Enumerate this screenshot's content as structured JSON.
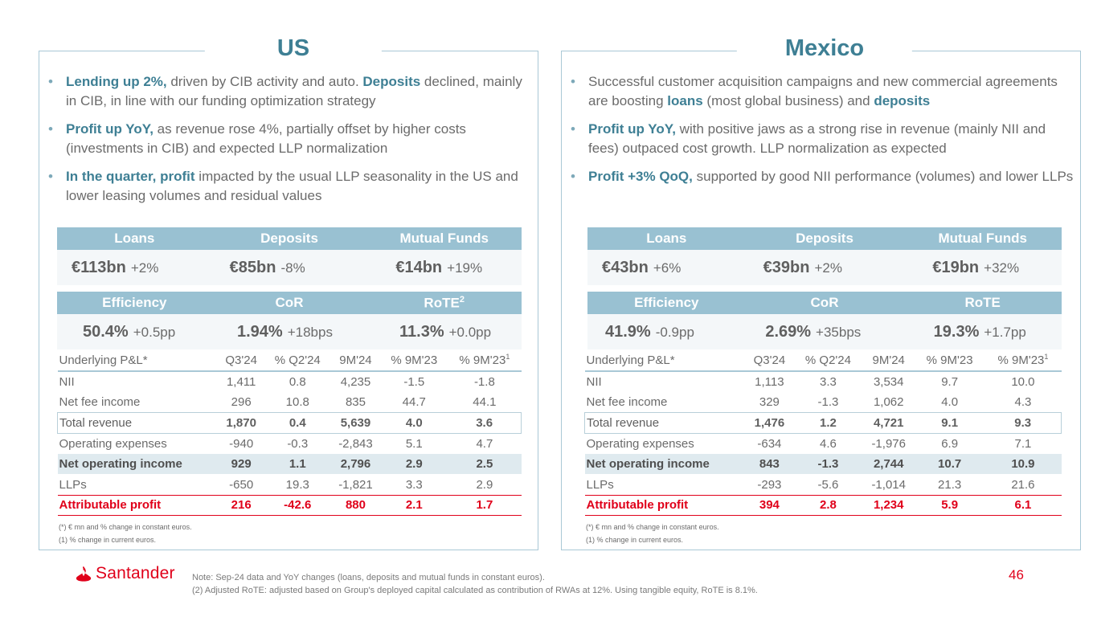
{
  "us": {
    "title": "US",
    "bullets": [
      {
        "hl": "Lending up 2%,",
        "t1": " driven by CIB activity and auto. ",
        "hl2": "Deposits",
        "t2": " declined, mainly in CIB, in line with our funding optimization strategy"
      },
      {
        "hl": "Profit up YoY,",
        "t1": " as revenue rose 4%, partially offset by higher costs (investments in CIB) and expected LLP normalization"
      },
      {
        "hl": "In the quarter, profit",
        "t1": " impacted by the usual LLP seasonality in the US and lower leasing volumes and residual values"
      }
    ],
    "kpi_row1": {
      "headers": [
        "Loans",
        "Deposits",
        "Mutual Funds"
      ],
      "values": [
        {
          "v": "€113bn",
          "c": "+2%"
        },
        {
          "v": "€85bn",
          "c": "-8%"
        },
        {
          "v": "€14bn",
          "c": "+19%"
        }
      ]
    },
    "kpi_row2": {
      "headers": [
        "Efficiency",
        "CoR",
        "RoTE"
      ],
      "rote_sup": "2",
      "values": [
        {
          "v": "50.4%",
          "c": "+0.5pp"
        },
        {
          "v": "1.94%",
          "c": "+18bps"
        },
        {
          "v": "11.3%",
          "c": "+0.0pp"
        }
      ]
    },
    "pl": {
      "headers": [
        "Underlying P&L*",
        "Q3'24",
        "% Q2'24",
        "9M'24",
        "% 9M'23",
        "% 9M'23"
      ],
      "last_header_sup": "1",
      "rows": [
        [
          "NII",
          "1,411",
          "0.8",
          "4,235",
          "-1.5",
          "-1.8"
        ],
        [
          "Net fee income",
          "296",
          "10.8",
          "835",
          "44.7",
          "44.1"
        ],
        [
          "Total revenue",
          "1,870",
          "0.4",
          "5,639",
          "4.0",
          "3.6"
        ],
        [
          "Operating expenses",
          "-940",
          "-0.3",
          "-2,843",
          "5.1",
          "4.7"
        ],
        [
          "Net operating income",
          "929",
          "1.1",
          "2,796",
          "2.9",
          "2.5"
        ],
        [
          "LLPs",
          "-650",
          "19.3",
          "-1,821",
          "3.3",
          "2.9"
        ],
        [
          "Attributable profit",
          "216",
          "-42.6",
          "880",
          "2.1",
          "1.7"
        ]
      ],
      "notes": [
        "(*) € mn and % change in constant euros.",
        "(1)  % change in current euros."
      ]
    }
  },
  "mx": {
    "title": "Mexico",
    "bullets": [
      {
        "t0": "Successful customer acquisition campaigns and new commercial agreements are boosting ",
        "hl": "loans",
        "t1": " (most global business) and ",
        "hl2": "deposits",
        "t2": ""
      },
      {
        "hl": "Profit up YoY,",
        "t1": " with positive jaws as a strong rise in revenue (mainly NII and fees) outpaced cost growth. LLP normalization as expected"
      },
      {
        "hl": "Profit +3% QoQ,",
        "t1": " supported by good NII performance (volumes) and lower LLPs"
      }
    ],
    "kpi_row1": {
      "headers": [
        "Loans",
        "Deposits",
        "Mutual Funds"
      ],
      "values": [
        {
          "v": "€43bn",
          "c": "+6%"
        },
        {
          "v": "€39bn",
          "c": "+2%"
        },
        {
          "v": "€19bn",
          "c": "+32%"
        }
      ]
    },
    "kpi_row2": {
      "headers": [
        "Efficiency",
        "CoR",
        "RoTE"
      ],
      "values": [
        {
          "v": "41.9%",
          "c": "-0.9pp"
        },
        {
          "v": "2.69%",
          "c": "+35bps"
        },
        {
          "v": "19.3%",
          "c": "+1.7pp"
        }
      ]
    },
    "pl": {
      "headers": [
        "Underlying P&L*",
        "Q3'24",
        "% Q2'24",
        "9M'24",
        "% 9M'23",
        "% 9M'23"
      ],
      "last_header_sup": "1",
      "rows": [
        [
          "NII",
          "1,113",
          "3.3",
          "3,534",
          "9.7",
          "10.0"
        ],
        [
          "Net fee income",
          "329",
          "-1.3",
          "1,062",
          "4.0",
          "4.3"
        ],
        [
          "Total revenue",
          "1,476",
          "1.2",
          "4,721",
          "9.1",
          "9.3"
        ],
        [
          "Operating expenses",
          "-634",
          "4.6",
          "-1,976",
          "6.9",
          "7.1"
        ],
        [
          "Net operating income",
          "843",
          "-1.3",
          "2,744",
          "10.7",
          "10.9"
        ],
        [
          "LLPs",
          "-293",
          "-5.6",
          "-1,014",
          "21.3",
          "21.6"
        ],
        [
          "Attributable profit",
          "394",
          "2.8",
          "1,234",
          "5.9",
          "6.1"
        ]
      ],
      "notes": [
        "(*) € mn and % change in constant euros.",
        "(1)  % change in current euros."
      ]
    }
  },
  "footer": {
    "brand": "Santander",
    "note_line1": "Note: Sep-24 data and YoY changes (loans, deposits and mutual funds in constant euros).",
    "note_line2": "(2) Adjusted RoTE: adjusted based on Group's deployed capital calculated as contribution of RWAs at 12%. Using tangible equity, RoTE is 8.1%.",
    "page_number": "46"
  },
  "colors": {
    "accent_teal": "#3e7f94",
    "header_blue": "#99c1d2",
    "santander_red": "#e0001a"
  }
}
